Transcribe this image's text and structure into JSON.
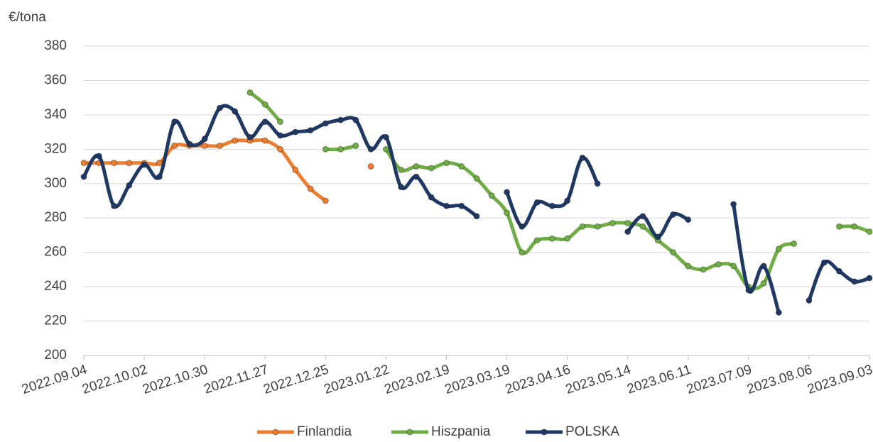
{
  "chart_data": {
    "type": "line",
    "y_label": "€/tona",
    "categories": [
      "2022.09.04",
      null,
      null,
      null,
      "2022.10.02",
      null,
      null,
      null,
      "2022.10.30",
      null,
      null,
      null,
      "2022.11.27",
      null,
      null,
      null,
      "2022.12.25",
      null,
      null,
      null,
      "2023.01.22",
      null,
      null,
      null,
      "2023.02.19",
      null,
      null,
      null,
      "2023.03.19",
      null,
      null,
      null,
      "2023.04.16",
      null,
      null,
      null,
      "2023.05.14",
      null,
      null,
      null,
      "2023.06.11",
      null,
      null,
      null,
      "2023.07.09",
      null,
      null,
      null,
      "2023.08.06",
      null,
      null,
      null,
      "2023.09.03"
    ],
    "series": [
      {
        "name": "Finlandia",
        "color": "#ed7d31",
        "values": [
          312,
          312,
          312,
          312,
          312,
          312,
          322,
          322,
          322,
          322,
          325,
          325,
          325,
          320,
          308,
          297,
          290,
          null,
          null,
          310,
          null,
          null,
          null,
          null,
          null,
          null,
          null,
          null,
          null,
          null,
          null,
          null,
          null,
          null,
          null,
          null,
          null,
          null,
          null,
          null,
          null,
          null,
          null,
          null,
          null,
          null,
          null,
          null,
          null,
          null,
          null,
          null,
          null
        ]
      },
      {
        "name": "Hiszpania",
        "color": "#70ad47",
        "values": [
          null,
          null,
          null,
          null,
          null,
          null,
          null,
          null,
          null,
          null,
          null,
          353,
          346,
          336,
          null,
          null,
          320,
          320,
          322,
          null,
          320,
          308,
          310,
          309,
          312,
          310,
          303,
          293,
          283,
          260,
          267,
          268,
          268,
          275,
          275,
          277,
          277,
          275,
          267,
          260,
          252,
          250,
          253,
          252,
          240,
          242,
          262,
          265,
          null,
          null,
          275,
          275,
          272
        ]
      },
      {
        "name": "POLSKA",
        "color": "#203864",
        "values": [
          304,
          316,
          287,
          299,
          311,
          304,
          336,
          323,
          326,
          344,
          342,
          327,
          336,
          328,
          330,
          331,
          335,
          337,
          337,
          320,
          327,
          298,
          304,
          292,
          287,
          287,
          281,
          null,
          295,
          275,
          289,
          287,
          290,
          315,
          300,
          null,
          272,
          281,
          269,
          282,
          279,
          null,
          null,
          288,
          238,
          252,
          225,
          null,
          232,
          254,
          249,
          243,
          245
        ]
      }
    ],
    "ylim": [
      200,
      380
    ],
    "yticks": [
      200,
      220,
      240,
      260,
      280,
      300,
      320,
      340,
      360,
      380
    ],
    "grid": true,
    "legend": "bottom"
  }
}
